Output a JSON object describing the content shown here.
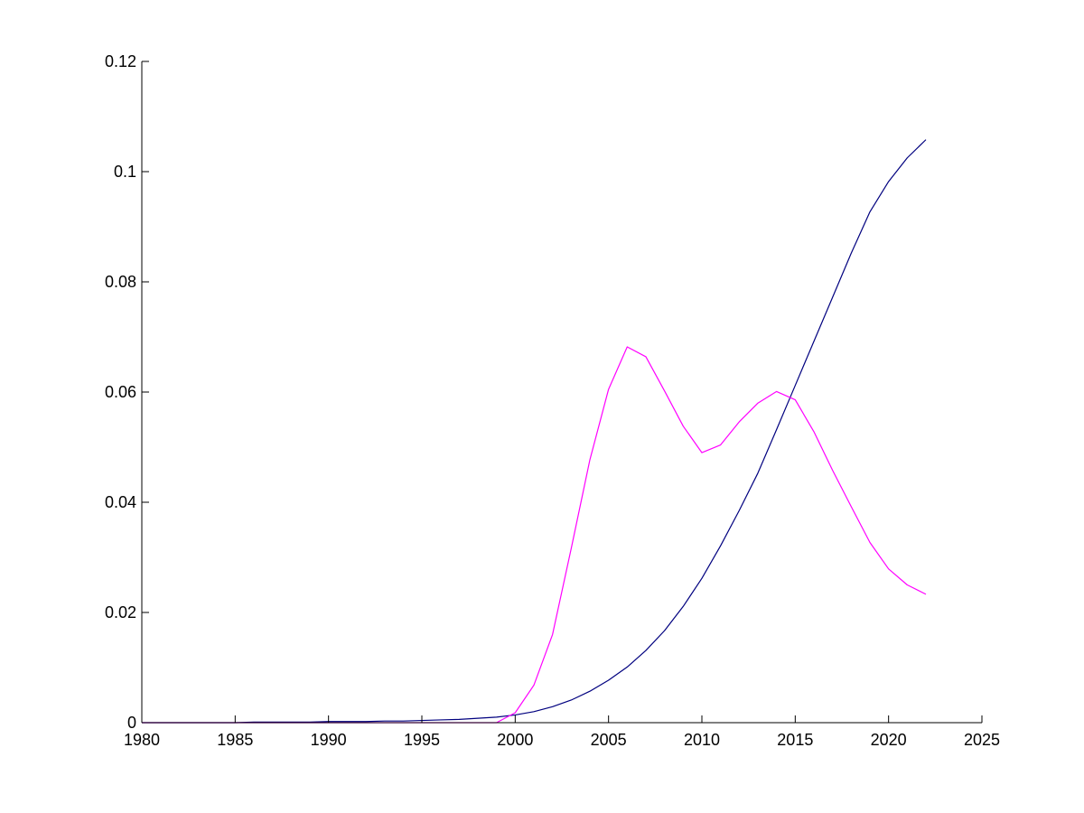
{
  "chart_data": {
    "type": "line",
    "title": "",
    "xlabel": "",
    "ylabel": "",
    "xlim": [
      1980,
      2025
    ],
    "ylim": [
      0,
      0.12
    ],
    "grid": false,
    "x_ticks": [
      1980,
      1985,
      1990,
      1995,
      2000,
      2005,
      2010,
      2015,
      2020,
      2025
    ],
    "x_tick_labels": [
      "1980",
      "1985",
      "1990",
      "1995",
      "2000",
      "2005",
      "2010",
      "2015",
      "2020",
      "2025"
    ],
    "y_ticks": [
      0,
      0.02,
      0.04,
      0.06,
      0.08,
      0.1,
      0.12
    ],
    "y_tick_labels": [
      "0",
      "0.02",
      "0.04",
      "0.06",
      "0.08",
      "0.1",
      "0.12"
    ],
    "x": [
      1980,
      1981,
      1982,
      1983,
      1984,
      1985,
      1986,
      1987,
      1988,
      1989,
      1990,
      1991,
      1992,
      1993,
      1994,
      1995,
      1996,
      1997,
      1998,
      1999,
      2000,
      2001,
      2002,
      2003,
      2004,
      2005,
      2006,
      2007,
      2008,
      2009,
      2010,
      2011,
      2012,
      2013,
      2014,
      2015,
      2016,
      2017,
      2018,
      2019,
      2020,
      2021,
      2022
    ],
    "series": [
      {
        "color": "#00007f",
        "values": [
          0,
          0,
          0,
          0,
          0,
          0,
          0.0001,
          0.0001,
          0.0001,
          0.0001,
          0.0002,
          0.0002,
          0.0002,
          0.0003,
          0.0003,
          0.0004,
          0.0005,
          0.0006,
          0.0008,
          0.001,
          0.0014,
          0.002,
          0.0029,
          0.0041,
          0.0057,
          0.0077,
          0.0101,
          0.0131,
          0.0167,
          0.0211,
          0.0262,
          0.0321,
          0.0385,
          0.0453,
          0.0532,
          0.0612,
          0.0692,
          0.0772,
          0.0852,
          0.0927,
          0.0982,
          0.1025,
          0.1058
        ]
      },
      {
        "color": "#ff00ff",
        "values": [
          0,
          0,
          0,
          0,
          0,
          0,
          0,
          0,
          0,
          0,
          0,
          0,
          0,
          0,
          0,
          0,
          0,
          0,
          0,
          0,
          0.0018,
          0.0068,
          0.016,
          0.0316,
          0.0477,
          0.0605,
          0.0682,
          0.0664,
          0.0602,
          0.0538,
          0.049,
          0.0504,
          0.0546,
          0.058,
          0.0601,
          0.0586,
          0.0528,
          0.0458,
          0.0392,
          0.0327,
          0.0279,
          0.025,
          0.0233
        ]
      }
    ]
  }
}
